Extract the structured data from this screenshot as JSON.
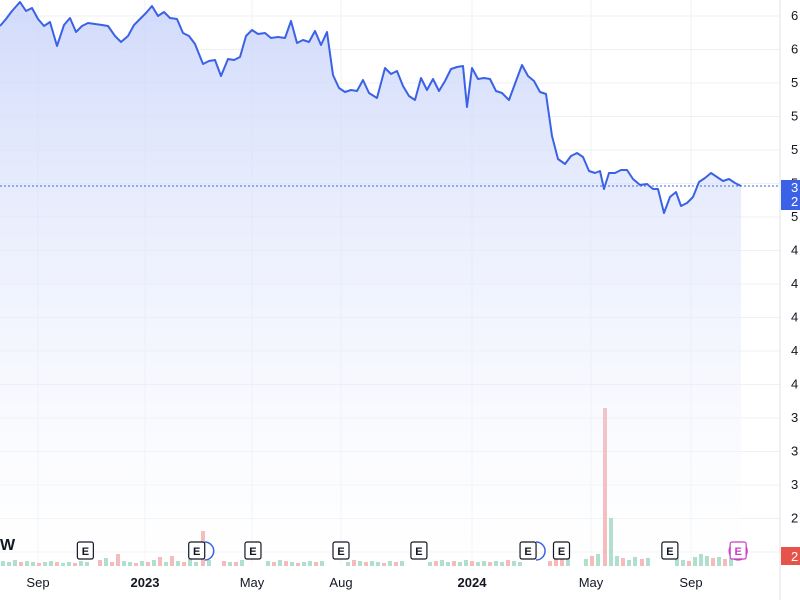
{
  "watermark": "W",
  "chart_data": {
    "type": "area",
    "x_axis_labels": [
      {
        "text": "Sep",
        "bold": false,
        "date": "2022-09-01"
      },
      {
        "text": "2023",
        "bold": true,
        "date": "2023-01-01"
      },
      {
        "text": "May",
        "bold": false,
        "date": "2023-05-01"
      },
      {
        "text": "Aug",
        "bold": false,
        "date": "2023-08-01"
      },
      {
        "text": "2024",
        "bold": true,
        "date": "2024-01-01"
      },
      {
        "text": "May",
        "bold": false,
        "date": "2024-05-01"
      },
      {
        "text": "Sep",
        "bold": false,
        "date": "2024-09-01"
      }
    ],
    "y_axis_labels": [
      "6",
      "6",
      "5",
      "5",
      "5",
      "5",
      "5",
      "4",
      "4",
      "4",
      "4",
      "4",
      "3",
      "3",
      "3",
      "2",
      "3"
    ],
    "last_value_labels": [
      "3",
      "2"
    ],
    "volume_last_label": "2",
    "series": [
      {
        "values": [
          [
            0,
            540
          ],
          [
            6,
            547
          ],
          [
            12,
            555
          ],
          [
            20,
            564
          ],
          [
            26,
            555
          ],
          [
            32,
            558
          ],
          [
            38,
            547
          ],
          [
            44,
            540
          ],
          [
            50,
            544
          ],
          [
            57,
            520
          ],
          [
            64,
            541
          ],
          [
            70,
            548
          ],
          [
            76,
            534
          ],
          [
            82,
            540
          ],
          [
            88,
            543
          ],
          [
            95,
            542
          ],
          [
            102,
            541
          ],
          [
            108,
            540
          ],
          [
            115,
            530
          ],
          [
            121,
            524
          ],
          [
            128,
            530
          ],
          [
            134,
            541
          ],
          [
            140,
            547
          ],
          [
            146,
            553
          ],
          [
            152,
            560
          ],
          [
            158,
            550
          ],
          [
            164,
            554
          ],
          [
            170,
            548
          ],
          [
            177,
            547
          ],
          [
            183,
            533
          ],
          [
            189,
            530
          ],
          [
            195,
            522
          ],
          [
            203,
            502
          ],
          [
            209,
            505
          ],
          [
            215,
            506
          ],
          [
            221,
            490
          ],
          [
            228,
            507
          ],
          [
            234,
            506
          ],
          [
            240,
            509
          ],
          [
            246,
            530
          ],
          [
            252,
            536
          ],
          [
            258,
            532
          ],
          [
            265,
            533
          ],
          [
            271,
            528
          ],
          [
            278,
            529
          ],
          [
            285,
            528
          ],
          [
            291,
            545
          ],
          [
            297,
            523
          ],
          [
            303,
            526
          ],
          [
            309,
            524
          ],
          [
            315,
            535
          ],
          [
            321,
            521
          ],
          [
            327,
            534
          ],
          [
            333,
            491
          ],
          [
            339,
            478
          ],
          [
            345,
            474
          ],
          [
            351,
            476
          ],
          [
            357,
            475
          ],
          [
            363,
            486
          ],
          [
            369,
            473
          ],
          [
            377,
            468
          ],
          [
            385,
            498
          ],
          [
            391,
            492
          ],
          [
            397,
            495
          ],
          [
            403,
            480
          ],
          [
            409,
            470
          ],
          [
            415,
            466
          ],
          [
            421,
            488
          ],
          [
            427,
            476
          ],
          [
            433,
            487
          ],
          [
            439,
            475
          ],
          [
            445,
            485
          ],
          [
            451,
            497
          ],
          [
            457,
            499
          ],
          [
            463,
            500
          ],
          [
            467,
            459
          ],
          [
            472,
            498
          ],
          [
            478,
            487
          ],
          [
            484,
            488
          ],
          [
            490,
            487
          ],
          [
            496,
            475
          ],
          [
            502,
            473
          ],
          [
            509,
            466
          ],
          [
            516,
            485
          ],
          [
            522,
            501
          ],
          [
            528,
            490
          ],
          [
            534,
            485
          ],
          [
            540,
            474
          ],
          [
            546,
            472
          ],
          [
            552,
            430
          ],
          [
            558,
            407
          ],
          [
            565,
            402
          ],
          [
            571,
            410
          ],
          [
            577,
            413
          ],
          [
            583,
            409
          ],
          [
            589,
            395
          ],
          [
            595,
            393
          ],
          [
            600,
            395
          ],
          [
            604,
            377
          ],
          [
            609,
            393
          ],
          [
            615,
            393
          ],
          [
            621,
            396
          ],
          [
            627,
            396
          ],
          [
            633,
            387
          ],
          [
            640,
            381
          ],
          [
            647,
            382
          ],
          [
            653,
            377
          ],
          [
            658,
            377
          ],
          [
            664,
            353
          ],
          [
            670,
            369
          ],
          [
            676,
            374
          ],
          [
            681,
            360
          ],
          [
            687,
            363
          ],
          [
            693,
            369
          ],
          [
            699,
            384
          ],
          [
            705,
            388
          ],
          [
            711,
            393
          ],
          [
            717,
            389
          ],
          [
            723,
            385
          ],
          [
            729,
            387
          ],
          [
            735,
            383
          ],
          [
            741,
            380
          ]
        ]
      }
    ],
    "volume_bars": [
      [
        1,
        5,
        "g"
      ],
      [
        7,
        4,
        "g"
      ],
      [
        13,
        6,
        "g"
      ],
      [
        19,
        4,
        "r"
      ],
      [
        25,
        5,
        "g"
      ],
      [
        31,
        4,
        "g"
      ],
      [
        37,
        3,
        "r"
      ],
      [
        43,
        4,
        "g"
      ],
      [
        49,
        5,
        "g"
      ],
      [
        55,
        4,
        "r"
      ],
      [
        61,
        3,
        "g"
      ],
      [
        67,
        4,
        "g"
      ],
      [
        73,
        3,
        "r"
      ],
      [
        79,
        5,
        "g"
      ],
      [
        85,
        4,
        "g"
      ],
      [
        98,
        6,
        "r"
      ],
      [
        104,
        8,
        "g"
      ],
      [
        110,
        4,
        "r"
      ],
      [
        116,
        12,
        "r"
      ],
      [
        122,
        5,
        "g"
      ],
      [
        128,
        4,
        "g"
      ],
      [
        134,
        3,
        "r"
      ],
      [
        140,
        5,
        "g"
      ],
      [
        146,
        4,
        "r"
      ],
      [
        152,
        6,
        "g"
      ],
      [
        158,
        9,
        "r"
      ],
      [
        164,
        4,
        "g"
      ],
      [
        170,
        10,
        "r"
      ],
      [
        176,
        5,
        "g"
      ],
      [
        182,
        4,
        "r"
      ],
      [
        188,
        7,
        "g"
      ],
      [
        194,
        4,
        "g"
      ],
      [
        201,
        35,
        "r"
      ],
      [
        207,
        6,
        "g"
      ],
      [
        222,
        5,
        "r"
      ],
      [
        228,
        4,
        "g"
      ],
      [
        234,
        4,
        "r"
      ],
      [
        240,
        6,
        "g"
      ],
      [
        266,
        5,
        "g"
      ],
      [
        272,
        4,
        "r"
      ],
      [
        278,
        6,
        "g"
      ],
      [
        284,
        5,
        "r"
      ],
      [
        290,
        4,
        "g"
      ],
      [
        296,
        3,
        "r"
      ],
      [
        302,
        4,
        "g"
      ],
      [
        308,
        5,
        "g"
      ],
      [
        314,
        4,
        "r"
      ],
      [
        320,
        5,
        "g"
      ],
      [
        346,
        4,
        "g"
      ],
      [
        352,
        6,
        "r"
      ],
      [
        358,
        5,
        "g"
      ],
      [
        364,
        4,
        "r"
      ],
      [
        370,
        5,
        "g"
      ],
      [
        376,
        4,
        "g"
      ],
      [
        382,
        3,
        "r"
      ],
      [
        388,
        5,
        "g"
      ],
      [
        394,
        4,
        "r"
      ],
      [
        400,
        5,
        "g"
      ],
      [
        428,
        4,
        "g"
      ],
      [
        434,
        5,
        "r"
      ],
      [
        440,
        6,
        "g"
      ],
      [
        446,
        4,
        "g"
      ],
      [
        452,
        5,
        "r"
      ],
      [
        458,
        4,
        "g"
      ],
      [
        464,
        6,
        "g"
      ],
      [
        470,
        5,
        "r"
      ],
      [
        476,
        4,
        "g"
      ],
      [
        482,
        5,
        "g"
      ],
      [
        488,
        4,
        "r"
      ],
      [
        494,
        5,
        "g"
      ],
      [
        500,
        4,
        "g"
      ],
      [
        506,
        6,
        "r"
      ],
      [
        512,
        5,
        "g"
      ],
      [
        518,
        4,
        "g"
      ],
      [
        548,
        5,
        "r"
      ],
      [
        554,
        10,
        "r"
      ],
      [
        560,
        12,
        "r"
      ],
      [
        566,
        8,
        "g"
      ],
      [
        584,
        7,
        "g"
      ],
      [
        590,
        10,
        "r"
      ],
      [
        596,
        12,
        "g"
      ],
      [
        603,
        158,
        "r"
      ],
      [
        609,
        48,
        "g"
      ],
      [
        615,
        10,
        "g"
      ],
      [
        621,
        8,
        "r"
      ],
      [
        627,
        6,
        "g"
      ],
      [
        633,
        9,
        "g"
      ],
      [
        640,
        7,
        "r"
      ],
      [
        646,
        8,
        "g"
      ],
      [
        675,
        8,
        "g"
      ],
      [
        681,
        6,
        "g"
      ],
      [
        687,
        5,
        "r"
      ],
      [
        693,
        9,
        "g"
      ],
      [
        699,
        12,
        "g"
      ],
      [
        705,
        10,
        "g"
      ],
      [
        711,
        8,
        "r"
      ],
      [
        717,
        9,
        "g"
      ],
      [
        723,
        7,
        "r"
      ],
      [
        729,
        8,
        "g"
      ]
    ],
    "earnings_markers": [
      {
        "label": "E",
        "date": "2022-10-25",
        "style": "box"
      },
      {
        "label": "E",
        "date": "2023-02-28",
        "style": "box-halfcircle"
      },
      {
        "label": "E",
        "date": "2023-05-02",
        "style": "box"
      },
      {
        "label": "E",
        "date": "2023-08-01",
        "style": "box"
      },
      {
        "label": "E",
        "date": "2023-10-31",
        "style": "box"
      },
      {
        "label": "E",
        "date": "2024-02-27",
        "style": "box-halfcircle"
      },
      {
        "label": "E",
        "date": "2024-04-01",
        "style": "box"
      },
      {
        "label": "E",
        "date": "2024-08-06",
        "style": "box"
      },
      {
        "label": "E",
        "date": "2024-10-29",
        "style": "upcoming"
      }
    ],
    "grid": true,
    "colors": {
      "line": "#3b62e6",
      "fill_top": "#c9d4fa",
      "fill_bottom": "#ffffff",
      "volume_up": "#8dd1b9",
      "volume_down": "#f29d9d",
      "current_price": "#3b62e6",
      "upcoming_earnings": "#c93fc4"
    }
  }
}
